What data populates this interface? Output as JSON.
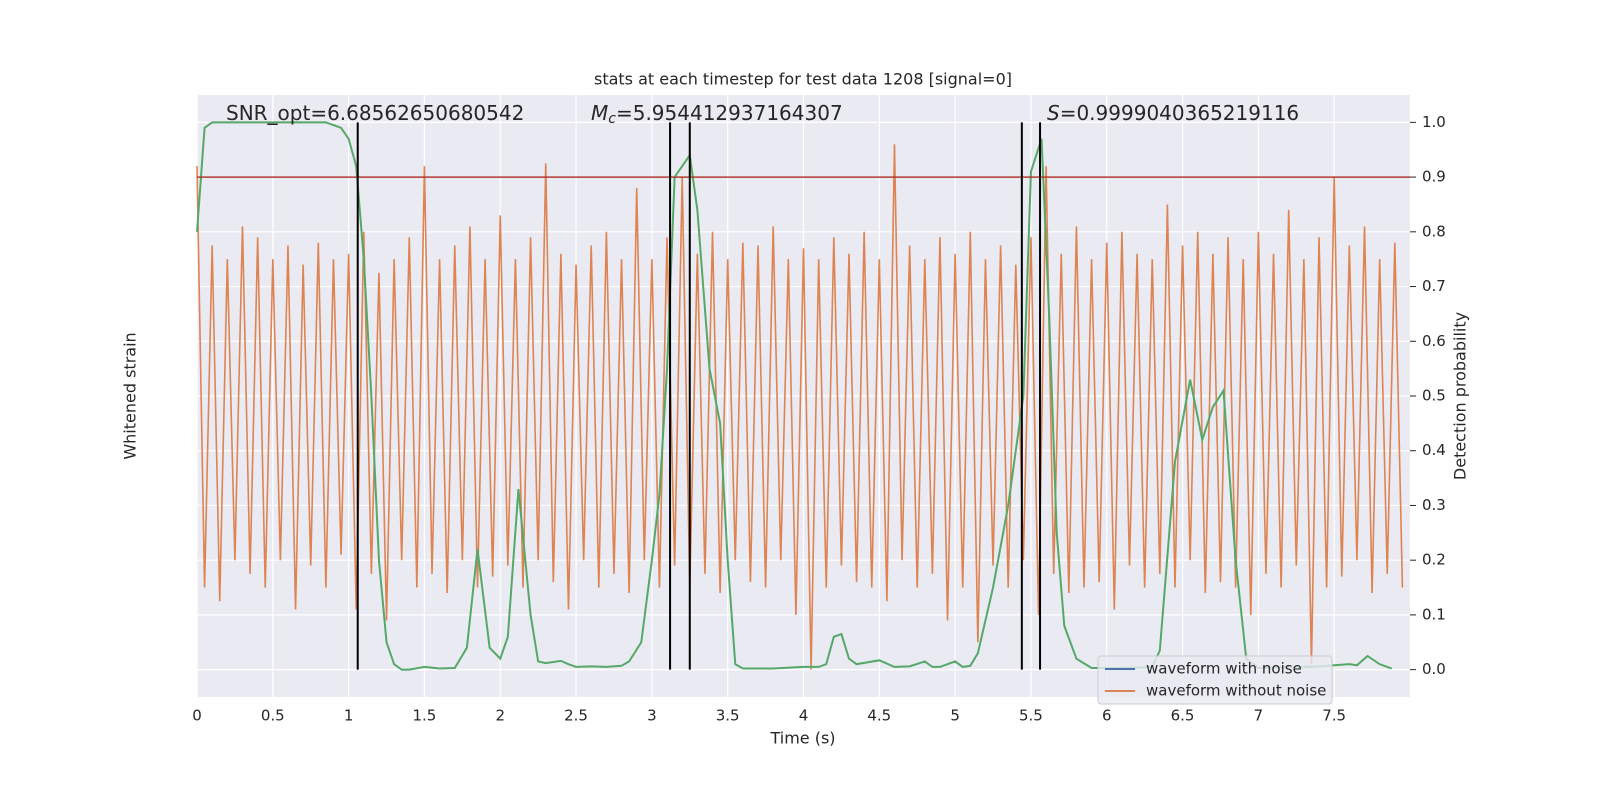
{
  "chart_data": {
    "type": "line",
    "title": "stats at each timestep for test data 1208 [signal=0]",
    "annotations": [
      {
        "value": "SNR_opt=6.68562650680542"
      },
      {
        "symbol": "M",
        "subscript": "c",
        "value": "=5.954412937164307"
      },
      {
        "symbol": "S",
        "value": "=0.9999040365219116"
      }
    ],
    "x_label": "Time (s)",
    "y_label": "Whitened strain",
    "y2_label": "Detection probability",
    "xlim": [
      0,
      8
    ],
    "xticks": [
      0.0,
      0.5,
      1.0,
      1.5,
      2.0,
      2.5,
      3.0,
      3.5,
      4.0,
      4.5,
      5.0,
      5.5,
      6.0,
      6.5,
      7.0,
      7.5
    ],
    "ylim": [
      -1.1,
      1.1
    ],
    "y2lim": [
      -0.05,
      1.05
    ],
    "y2ticks": [
      0.0,
      0.1,
      0.2,
      0.3,
      0.4,
      0.5,
      0.6,
      0.7,
      0.8,
      0.9,
      1.0
    ],
    "grid": true,
    "legend": "lower right",
    "threshold": 0.9,
    "threshold_color": "#b03a2e",
    "vlines": [
      1.06,
      3.12,
      3.25,
      5.44,
      5.56
    ],
    "vline_color": "#000000",
    "series": [
      {
        "name": "waveform with noise",
        "color": "#4c72b0"
      },
      {
        "name": "waveform without noise",
        "color": "#dd8452",
        "x": [
          0,
          0.05,
          0.1,
          0.15,
          0.2,
          0.25,
          0.3,
          0.35,
          0.4,
          0.45,
          0.5,
          0.55,
          0.6,
          0.65,
          0.7,
          0.75,
          0.8,
          0.85,
          0.9,
          0.95,
          1,
          1.05,
          1.1,
          1.15,
          1.2,
          1.25,
          1.3,
          1.35,
          1.4,
          1.45,
          1.5,
          1.55,
          1.6,
          1.65,
          1.7,
          1.75,
          1.8,
          1.85,
          1.9,
          1.95,
          2,
          2.05,
          2.1,
          2.15,
          2.2,
          2.25,
          2.3,
          2.35,
          2.4,
          2.45,
          2.5,
          2.55,
          2.6,
          2.65,
          2.7,
          2.75,
          2.8,
          2.85,
          2.9,
          2.95,
          3,
          3.05,
          3.1,
          3.15,
          3.2,
          3.25,
          3.3,
          3.35,
          3.4,
          3.45,
          3.5,
          3.55,
          3.6,
          3.65,
          3.7,
          3.75,
          3.8,
          3.85,
          3.9,
          3.95,
          4,
          4.05,
          4.1,
          4.15,
          4.2,
          4.25,
          4.3,
          4.35,
          4.4,
          4.45,
          4.5,
          4.55,
          4.6,
          4.65,
          4.7,
          4.75,
          4.8,
          4.85,
          4.9,
          4.95,
          5,
          5.05,
          5.1,
          5.15,
          5.2,
          5.25,
          5.3,
          5.35,
          5.4,
          5.45,
          5.5,
          5.55,
          5.6,
          5.65,
          5.7,
          5.75,
          5.8,
          5.85,
          5.9,
          5.95,
          6,
          6.05,
          6.1,
          6.15,
          6.2,
          6.25,
          6.3,
          6.35,
          6.4,
          6.45,
          6.5,
          6.55,
          6.6,
          6.65,
          6.7,
          6.75,
          6.8,
          6.85,
          6.9,
          6.95,
          7,
          7.05,
          7.1,
          7.15,
          7.2,
          7.25,
          7.3,
          7.35,
          7.4,
          7.45,
          7.5,
          7.55,
          7.6,
          7.65,
          7.7,
          7.75,
          7.8,
          7.85,
          7.9,
          7.95
        ],
        "values": [
          0.84,
          -0.7,
          0.55,
          -0.75,
          0.5,
          -0.6,
          0.62,
          -0.65,
          0.58,
          -0.7,
          0.5,
          -0.6,
          0.55,
          -0.78,
          0.48,
          -0.62,
          0.56,
          -0.7,
          0.5,
          -0.58,
          0.52,
          -0.78,
          0.6,
          -0.65,
          0.45,
          -0.82,
          0.5,
          -0.6,
          0.58,
          -0.7,
          0.84,
          -0.65,
          0.5,
          -0.72,
          0.55,
          -0.6,
          0.62,
          -0.7,
          0.5,
          -0.66,
          0.66,
          -0.62,
          0.5,
          -0.7,
          0.58,
          -0.6,
          0.85,
          -0.68,
          0.52,
          -0.78,
          0.48,
          -0.6,
          0.55,
          -0.7,
          0.6,
          -0.65,
          0.5,
          -0.72,
          0.76,
          -0.6,
          0.5,
          -0.7,
          0.58,
          -0.62,
          0.8,
          -0.7,
          0.52,
          -0.65,
          0.6,
          -0.72,
          0.5,
          -0.6,
          0.56,
          -0.68,
          0.55,
          -0.7,
          0.62,
          -0.6,
          0.5,
          -0.8,
          0.54,
          -1.0,
          0.5,
          -0.7,
          0.58,
          -0.62,
          0.52,
          -0.68,
          0.6,
          -0.7,
          0.5,
          -0.75,
          0.92,
          -0.6,
          0.55,
          -0.7,
          0.5,
          -0.65,
          0.58,
          -0.82,
          0.52,
          -0.7,
          0.6,
          -0.9,
          0.5,
          -0.62,
          0.55,
          -0.7,
          0.48,
          -0.6,
          0.58,
          -0.8,
          0.84,
          -0.65,
          0.52,
          -0.72,
          0.62,
          -0.7,
          0.5,
          -0.68,
          0.56,
          -0.78,
          0.6,
          -0.62,
          0.52,
          -0.7,
          0.5,
          -0.65,
          0.7,
          -0.7,
          0.55,
          -0.6,
          0.6,
          -0.72,
          0.52,
          -0.68,
          0.58,
          -0.7,
          0.5,
          -0.8,
          0.6,
          -0.65,
          0.52,
          -0.7,
          0.68,
          -0.62,
          0.5,
          -0.98,
          0.58,
          -0.7,
          0.8,
          -0.66,
          0.55,
          -0.6,
          0.62,
          -0.72,
          0.5,
          -0.65,
          0.56,
          -0.7
        ]
      },
      {
        "name": "Detection probability",
        "axis": "y2",
        "color": "#55a868",
        "x": [
          0,
          0.05,
          0.1,
          0.2,
          0.3,
          0.4,
          0.5,
          0.6,
          0.7,
          0.85,
          0.95,
          1,
          1.05,
          1.1,
          1.15,
          1.2,
          1.25,
          1.3,
          1.35,
          1.4,
          1.5,
          1.6,
          1.7,
          1.78,
          1.85,
          1.93,
          2,
          2.05,
          2.12,
          2.2,
          2.25,
          2.3,
          2.4,
          2.45,
          2.5,
          2.6,
          2.7,
          2.8,
          2.85,
          2.93,
          3,
          3.05,
          3.1,
          3.15,
          3.25,
          3.3,
          3.38,
          3.45,
          3.5,
          3.55,
          3.6,
          3.8,
          4,
          4.1,
          4.15,
          4.2,
          4.25,
          4.3,
          4.35,
          4.5,
          4.6,
          4.7,
          4.8,
          4.85,
          4.9,
          5,
          5.05,
          5.1,
          5.15,
          5.25,
          5.35,
          5.45,
          5.5,
          5.57,
          5.62,
          5.67,
          5.72,
          5.8,
          5.9,
          6.1,
          6.3,
          6.35,
          6.45,
          6.55,
          6.63,
          6.7,
          6.77,
          6.85,
          6.92,
          7,
          7.2,
          7.35,
          7.5,
          7.6,
          7.65,
          7.72,
          7.8,
          7.88
        ],
        "values": [
          0.8,
          0.99,
          1.0,
          1.0,
          1.0,
          1.0,
          1.0,
          1.0,
          1.0,
          1.0,
          0.99,
          0.97,
          0.92,
          0.75,
          0.5,
          0.2,
          0.05,
          0.01,
          0.0,
          0.0,
          0.005,
          0.002,
          0.003,
          0.04,
          0.22,
          0.04,
          0.02,
          0.06,
          0.33,
          0.1,
          0.015,
          0.012,
          0.016,
          0.01,
          0.005,
          0.006,
          0.005,
          0.007,
          0.015,
          0.05,
          0.2,
          0.32,
          0.55,
          0.9,
          0.94,
          0.84,
          0.55,
          0.45,
          0.2,
          0.01,
          0.002,
          0.002,
          0.005,
          0.005,
          0.01,
          0.06,
          0.065,
          0.02,
          0.01,
          0.017,
          0.005,
          0.006,
          0.015,
          0.005,
          0.005,
          0.015,
          0.005,
          0.007,
          0.03,
          0.15,
          0.3,
          0.5,
          0.91,
          0.97,
          0.65,
          0.25,
          0.08,
          0.02,
          0.003,
          0.003,
          0.005,
          0.035,
          0.38,
          0.53,
          0.42,
          0.48,
          0.51,
          0.2,
          0.02,
          0.003,
          0.005,
          0.005,
          0.008,
          0.01,
          0.008,
          0.025,
          0.01,
          0.002
        ]
      }
    ]
  }
}
